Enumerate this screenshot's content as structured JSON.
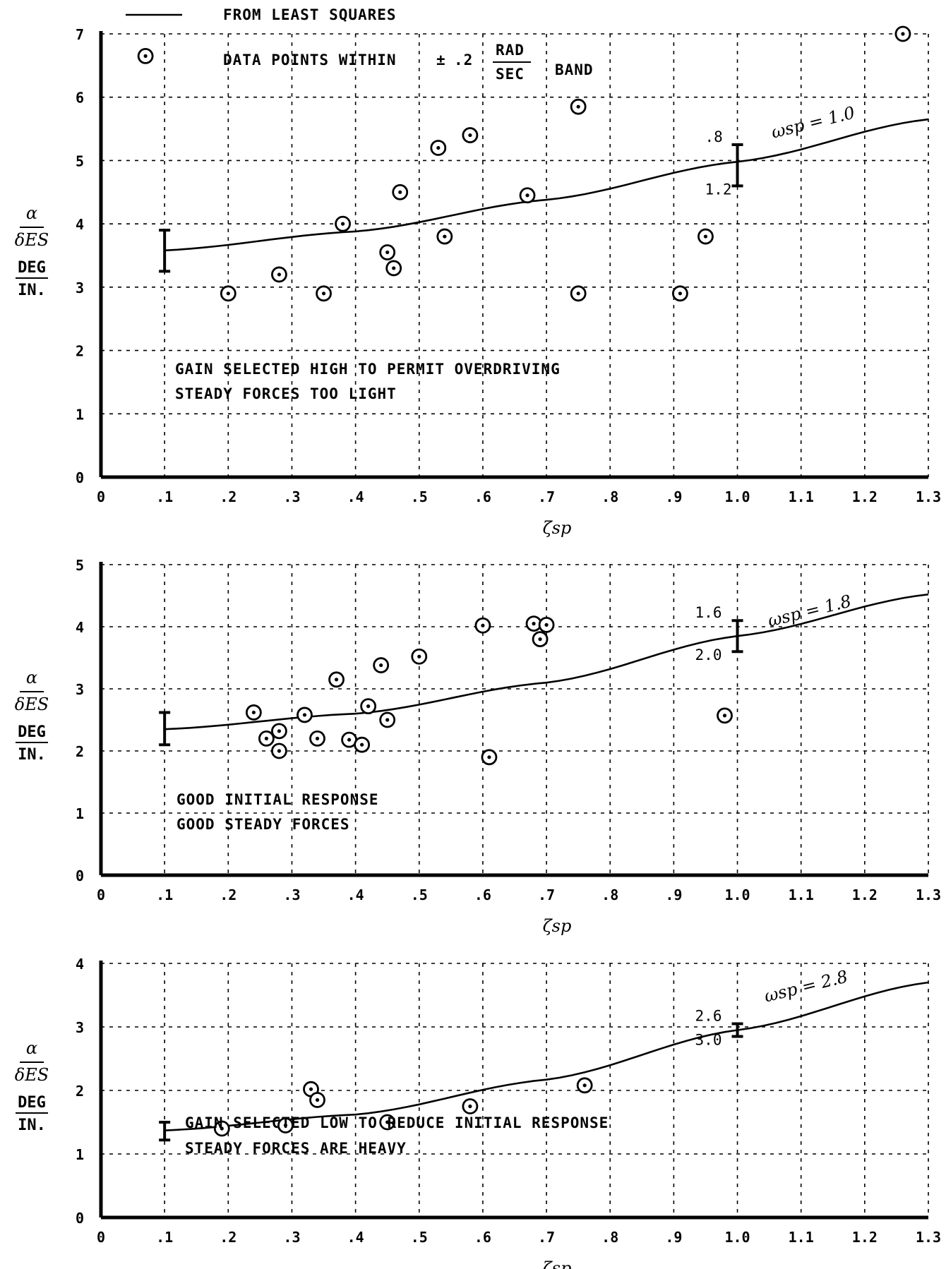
{
  "legend": {
    "line_label": "FROM LEAST SQUARES",
    "band_prefix": "DATA POINTS WITHIN",
    "band_pm": "±",
    "band_value": ".2",
    "band_unit_num": "RAD",
    "band_unit_den": "SEC",
    "band_suffix": "BAND"
  },
  "chart_data": [
    {
      "type": "scatter",
      "xlabel": "ζsp",
      "ylabel": {
        "num": "α",
        "den": "δES",
        "unit_num": "DEG",
        "unit_den": "IN."
      },
      "xlim": [
        0,
        1.3
      ],
      "ylim": [
        0,
        7
      ],
      "x_ticks": [
        "0",
        ".1",
        ".2",
        ".3",
        ".4",
        ".5",
        ".6",
        ".7",
        ".8",
        ".9",
        "1.0",
        "1.1",
        "1.2",
        "1.3"
      ],
      "y_ticks": [
        "0",
        "1",
        "2",
        "3",
        "4",
        "5",
        "6",
        "7"
      ],
      "points": [
        [
          0.07,
          6.65
        ],
        [
          0.2,
          2.9
        ],
        [
          0.28,
          3.2
        ],
        [
          0.35,
          2.9
        ],
        [
          0.38,
          4.0
        ],
        [
          0.45,
          3.55
        ],
        [
          0.46,
          3.3
        ],
        [
          0.47,
          4.5
        ],
        [
          0.53,
          5.2
        ],
        [
          0.54,
          3.8
        ],
        [
          0.58,
          5.4
        ],
        [
          0.67,
          4.45
        ],
        [
          0.75,
          5.85
        ],
        [
          0.75,
          2.9
        ],
        [
          0.91,
          2.9
        ],
        [
          0.95,
          3.8
        ],
        [
          1.26,
          7.0
        ]
      ],
      "fit": {
        "x": [
          0.1,
          0.4,
          0.7,
          1.0,
          1.3
        ],
        "y": [
          3.58,
          3.88,
          4.38,
          4.98,
          5.65
        ]
      },
      "curve_label": "ωsp = 1.0",
      "errorbars": [
        {
          "x": 0.1,
          "low": 3.25,
          "high": 3.9,
          "label_top": "",
          "label_bottom": ""
        },
        {
          "x": 1.0,
          "low": 4.6,
          "high": 5.25,
          "label_top": ".8",
          "label_bottom": "1.2"
        }
      ],
      "notes": [
        "GAIN SELECTED HIGH TO PERMIT OVERDRIVING",
        "STEADY FORCES TOO LIGHT"
      ]
    },
    {
      "type": "scatter",
      "xlabel": "ζsp",
      "ylabel": {
        "num": "α",
        "den": "δES",
        "unit_num": "DEG",
        "unit_den": "IN."
      },
      "xlim": [
        0,
        1.3
      ],
      "ylim": [
        0,
        5
      ],
      "x_ticks": [
        "0",
        ".1",
        ".2",
        ".3",
        ".4",
        ".5",
        ".6",
        ".7",
        ".8",
        ".9",
        "1.0",
        "1.1",
        "1.2",
        "1.3"
      ],
      "y_ticks": [
        "0",
        "1",
        "2",
        "3",
        "4",
        "5"
      ],
      "points": [
        [
          0.24,
          2.62
        ],
        [
          0.26,
          2.2
        ],
        [
          0.28,
          2.32
        ],
        [
          0.28,
          2.0
        ],
        [
          0.32,
          2.58
        ],
        [
          0.34,
          2.2
        ],
        [
          0.37,
          3.15
        ],
        [
          0.39,
          2.18
        ],
        [
          0.41,
          2.1
        ],
        [
          0.42,
          2.72
        ],
        [
          0.44,
          3.38
        ],
        [
          0.45,
          2.5
        ],
        [
          0.5,
          3.52
        ],
        [
          0.6,
          4.02
        ],
        [
          0.61,
          1.9
        ],
        [
          0.68,
          4.05
        ],
        [
          0.69,
          3.8
        ],
        [
          0.7,
          4.03
        ],
        [
          0.98,
          2.57
        ]
      ],
      "fit": {
        "x": [
          0.1,
          0.4,
          0.7,
          1.0,
          1.3
        ],
        "y": [
          2.35,
          2.6,
          3.1,
          3.85,
          4.52
        ]
      },
      "curve_label": "ωsp = 1.8",
      "errorbars": [
        {
          "x": 0.1,
          "low": 2.1,
          "high": 2.62,
          "label_top": "",
          "label_bottom": ""
        },
        {
          "x": 1.0,
          "low": 3.6,
          "high": 4.1,
          "label_top": "1.6",
          "label_bottom": "2.0"
        }
      ],
      "notes": [
        "GOOD INITIAL RESPONSE",
        "GOOD STEADY FORCES"
      ]
    },
    {
      "type": "scatter",
      "xlabel": "ζsp",
      "ylabel": {
        "num": "α",
        "den": "δES",
        "unit_num": "DEG",
        "unit_den": "IN."
      },
      "xlim": [
        0,
        1.3
      ],
      "ylim": [
        0,
        4
      ],
      "x_ticks": [
        "0",
        ".1",
        ".2",
        ".3",
        ".4",
        ".5",
        ".6",
        ".7",
        ".8",
        ".9",
        "1.0",
        "1.1",
        "1.2",
        "1.3"
      ],
      "y_ticks": [
        "0",
        "1",
        "2",
        "3",
        "4"
      ],
      "points": [
        [
          0.19,
          1.4
        ],
        [
          0.29,
          1.45
        ],
        [
          0.33,
          2.02
        ],
        [
          0.34,
          1.85
        ],
        [
          0.45,
          1.5
        ],
        [
          0.58,
          1.75
        ],
        [
          0.76,
          2.08
        ]
      ],
      "fit": {
        "x": [
          0.1,
          0.4,
          0.7,
          1.0,
          1.3
        ],
        "y": [
          1.37,
          1.62,
          2.17,
          2.95,
          3.7
        ]
      },
      "curve_label": "ωsp = 2.8",
      "errorbars": [
        {
          "x": 0.1,
          "low": 1.22,
          "high": 1.5,
          "label_top": "",
          "label_bottom": ""
        },
        {
          "x": 1.0,
          "low": 2.85,
          "high": 3.05,
          "label_top": "2.6",
          "label_bottom": "3.0"
        }
      ],
      "notes": [
        "GAIN SELECTED LOW TO REDUCE INITIAL RESPONSE",
        "STEADY FORCES ARE HEAVY"
      ]
    }
  ]
}
